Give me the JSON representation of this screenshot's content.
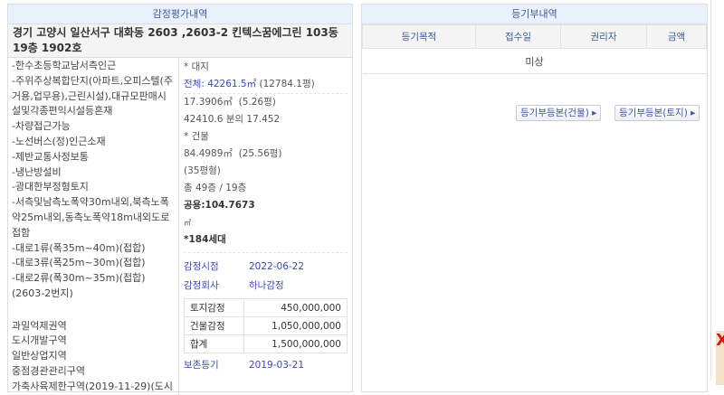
{
  "appraisal": {
    "title": "감정평가내역",
    "address": "경기 고양시 일산서구 대화동 2603 ,2603-2 킨텍스꿈에그린 103동 19층 1902호",
    "features": [
      "-한수초등학교남서측인근",
      "-주위주상복합단지(아파트,오피스텔(주거용,업무용),근린시설),대규모판매시설및각종편익시설등혼재",
      "-차량접근가능",
      "-노선버스(정)인근소재",
      "-제반교통사정보통",
      "-냉난방설비",
      "-광대한부정형토지",
      "-서측및남측노폭약30m내외,북측노폭약25m내외,동측노폭약18m내외도로접함",
      "-대로1류(폭35m~40m)(접합)",
      "-대로3류(폭25m~30m)(접합)",
      "-대로2류(폭30m~35m)(접합)(2603-2번지)",
      "",
      "과밀억제권역",
      "도시개발구역",
      "일반상업지역",
      "중점경관관리구역",
      "가축사육제한구역(2019-11-29)(도시"
    ],
    "land_label": "* 대지",
    "land_total": "전체: 42261.5㎡",
    "land_total_pyeong": "(12784.1평)",
    "land_area": "17.3906㎡",
    "land_area_pyeong": "(5.26평)",
    "land_share": "42410.6 분의 17.452",
    "building_label": "* 건물",
    "building_area": "84.4989㎡",
    "building_area_pyeong": "(25.56평)",
    "building_type": "(35평형)",
    "floors": "총 49층 / 19층",
    "common_area": "공용:104.7673",
    "common_unit": "㎡",
    "households": "*184세대",
    "appraisal_date_label": "감정시점",
    "appraisal_date": "2022-06-22",
    "appraiser_label": "감정회사",
    "appraiser": "하나감정",
    "amounts": [
      {
        "label": "토지감정",
        "value": "450,000,000"
      },
      {
        "label": "건물감정",
        "value": "1,050,000,000"
      },
      {
        "label": "합계",
        "value": "1,500,000,000"
      }
    ],
    "preservation_label": "보존등기",
    "preservation_date": "2019-03-21"
  },
  "registry": {
    "title": "등기부내역",
    "columns": [
      "등기목적",
      "접수일",
      "권리자",
      "금액"
    ],
    "empty_text": "미상",
    "btn_building": "등기부등본(건물)",
    "btn_land": "등기부등본(토지)",
    "arrow": "▸"
  },
  "side": {
    "mark": "X"
  }
}
